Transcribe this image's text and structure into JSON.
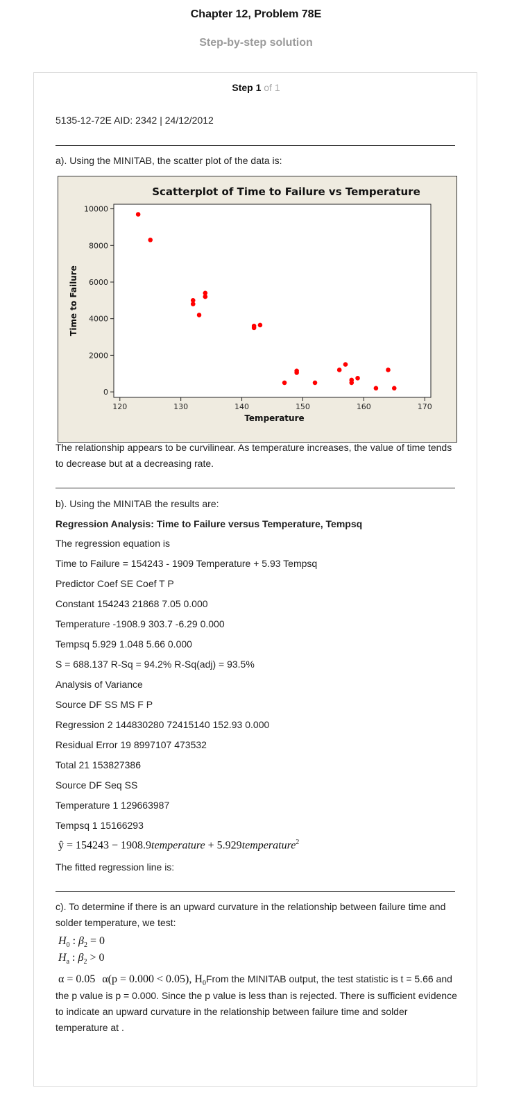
{
  "header": {
    "title": "Chapter 12, Problem 78E",
    "subtitle": "Step-by-step solution"
  },
  "step": {
    "label": "Step 1",
    "of": "of 1"
  },
  "meta_line": "5135-12-72E AID: 2342 | 24/12/2012",
  "part_a": {
    "intro": "a). Using the MINITAB, the scatter plot of the data is:",
    "conclusion": "The relationship appears to be curvilinear. As temperature increases, the value of time tends to decrease but at a decreasing rate."
  },
  "chart_data": {
    "type": "scatter",
    "title": "Scatterplot of Time to Failure vs Temperature",
    "xlabel": "Temperature",
    "ylabel": "Time to Failure",
    "xlim": [
      119,
      171
    ],
    "ylim": [
      -300,
      10250
    ],
    "xticks": [
      120,
      130,
      140,
      150,
      160,
      170
    ],
    "yticks": [
      0,
      2000,
      4000,
      6000,
      8000,
      10000
    ],
    "points": [
      [
        123,
        9700
      ],
      [
        125,
        8300
      ],
      [
        132,
        5000
      ],
      [
        132,
        4800
      ],
      [
        133,
        4200
      ],
      [
        134,
        5400
      ],
      [
        134,
        5200
      ],
      [
        142,
        3600
      ],
      [
        142,
        3500
      ],
      [
        143,
        3650
      ],
      [
        147,
        500
      ],
      [
        149,
        1150
      ],
      [
        149,
        1050
      ],
      [
        152,
        500
      ],
      [
        156,
        1200
      ],
      [
        157,
        1500
      ],
      [
        158,
        650
      ],
      [
        158,
        500
      ],
      [
        159,
        750
      ],
      [
        162,
        200
      ],
      [
        164,
        1200
      ],
      [
        165,
        200
      ]
    ],
    "point_color": "#ff0000",
    "background": "#efebe0",
    "grid": false,
    "legend": "none"
  },
  "part_b": {
    "intro": "b). Using the MINITAB the results are:",
    "heading": "Regression Analysis: Time to Failure versus Temperature, Tempsq",
    "lines": [
      "The regression equation is",
      "Time to Failure = 154243 - 1909 Temperature + 5.93 Tempsq",
      "Predictor Coef SE Coef T P",
      "Constant 154243 21868 7.05 0.000",
      "Temperature -1908.9 303.7 -6.29 0.000",
      "Tempsq 5.929 1.048 5.66 0.000",
      "S = 688.137 R-Sq = 94.2% R-Sq(adj) = 93.5%",
      "Analysis of Variance",
      "Source DF SS MS F P",
      "Regression 2 144830280 72415140 152.93 0.000",
      "Residual Error 19 8997107 473532",
      "Total 21 153827386",
      "Source DF Seq SS",
      "Temperature 1 129663987",
      "Tempsq 1 15166293"
    ],
    "equation": {
      "lhs": "ŷ",
      "rhs_num": " = 154243 − 1908.9",
      "term1": "temperature",
      "mid": " + 5.929",
      "term2": "temperature",
      "exp": "2"
    },
    "fitted_label": "The fitted regression line is:"
  },
  "part_c": {
    "intro": "c). To determine if there is an upward curvature in the relationship between failure time and solder temperature, we test:",
    "h0": {
      "H": "H",
      "sub": "0",
      "beta": "β",
      "bsub": "2",
      "rel": " = 0"
    },
    "ha": {
      "H": "H",
      "sub": "a",
      "beta": "β",
      "bsub": "2",
      "rel": " > 0"
    },
    "alpha_expr": "α = 0.05",
    "alpha_cond": "α(p = 0.000 < 0.05), H",
    "alpha_cond_sub": "0",
    "text_after": "From the MINITAB output, the test statistic is t = 5.66 and",
    "rest": "the p value is p = 0.000. Since the p value is less than is rejected. There is sufficient evidence to indicate an upward curvature in the relationship between failure time and solder temperature at ."
  }
}
